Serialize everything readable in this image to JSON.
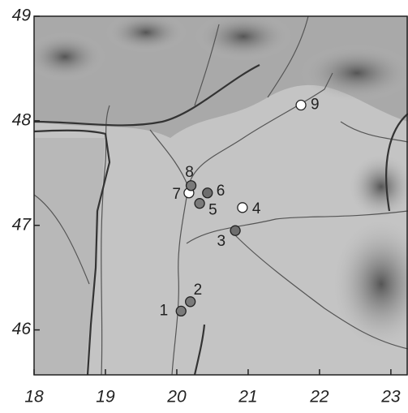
{
  "map": {
    "type": "scatter",
    "xlim": [
      18,
      23.24
    ],
    "ylim": [
      45.57,
      49
    ],
    "xticks": [
      18,
      19,
      20,
      21,
      22,
      23
    ],
    "yticks": [
      46,
      47,
      48,
      49
    ],
    "points": [
      {
        "label": "1",
        "lon": 20.06,
        "lat": 46.18,
        "color": "#7a7a7a"
      },
      {
        "label": "2",
        "lon": 20.19,
        "lat": 46.27,
        "color": "#7a7a7a"
      },
      {
        "label": "3",
        "lon": 20.82,
        "lat": 46.95,
        "color": "#6e6e6e"
      },
      {
        "label": "4",
        "lon": 20.92,
        "lat": 47.17,
        "color": "#ffffff"
      },
      {
        "label": "5",
        "lon": 20.32,
        "lat": 47.21,
        "color": "#7a7a7a"
      },
      {
        "label": "6",
        "lon": 20.43,
        "lat": 47.31,
        "color": "#6e6e6e"
      },
      {
        "label": "7",
        "lon": 20.17,
        "lat": 47.31,
        "color": "#ffffff"
      },
      {
        "label": "8",
        "lon": 20.2,
        "lat": 47.38,
        "color": "#7a7a7a"
      },
      {
        "label": "9",
        "lon": 21.74,
        "lat": 48.15,
        "color": "#ffffff"
      }
    ]
  }
}
